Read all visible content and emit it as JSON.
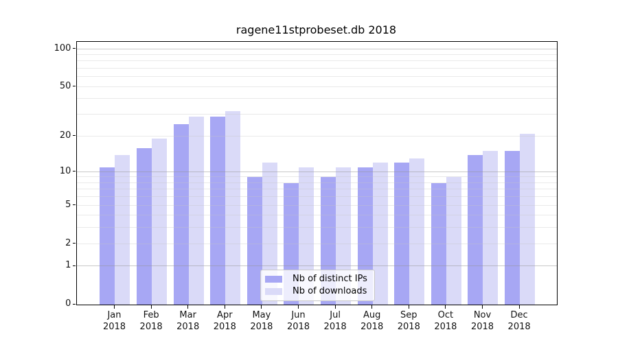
{
  "chart_data": {
    "type": "bar",
    "title": "ragene11stprobeset.db 2018",
    "categories": [
      "Jan",
      "Feb",
      "Mar",
      "Apr",
      "May",
      "Jun",
      "Jul",
      "Aug",
      "Sep",
      "Oct",
      "Nov",
      "Dec"
    ],
    "x_tick_label_line2": "2018",
    "series": [
      {
        "name": "Nb of distinct IPs",
        "color": "#a7a7f4",
        "values": [
          11,
          16,
          25,
          29,
          9,
          8,
          9,
          11,
          12,
          8,
          14,
          15
        ]
      },
      {
        "name": "Nb of downloads",
        "color": "#dadaf8",
        "values": [
          14,
          19,
          29,
          32,
          12,
          11,
          11,
          12,
          13,
          9,
          15,
          21
        ]
      }
    ],
    "yticks": [
      0,
      1,
      2,
      5,
      10,
      20,
      50,
      100
    ],
    "major_gridlines": [
      1,
      10,
      100
    ],
    "minor_gridlines": [
      2,
      3,
      4,
      5,
      6,
      7,
      8,
      9,
      20,
      30,
      40,
      50,
      60,
      70,
      80,
      90
    ],
    "scale": "log10(1+value)",
    "ylim": [
      0,
      111
    ],
    "grid": true,
    "legend_position": "lower center",
    "xlabel": "",
    "ylabel": ""
  }
}
